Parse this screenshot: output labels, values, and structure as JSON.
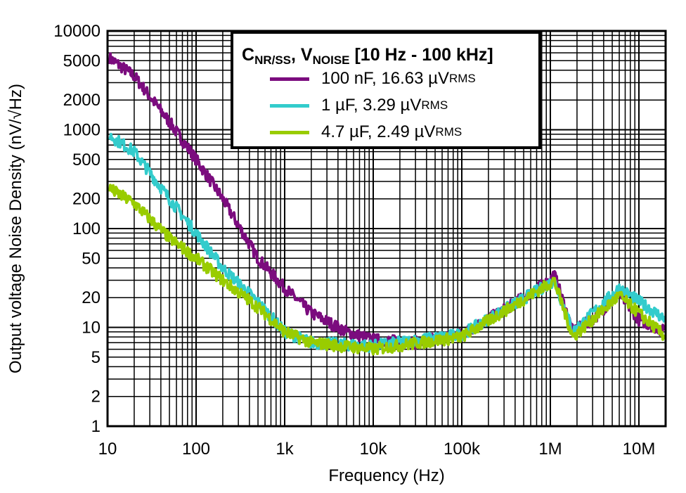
{
  "chart_data": {
    "type": "line",
    "xlabel": "Frequency (Hz)",
    "ylabel": "Output voltage Noise Density (nV/√Hz)",
    "xscale": "log",
    "yscale": "log",
    "xlim": [
      10,
      20000000
    ],
    "ylim": [
      1,
      10000
    ],
    "grid": true,
    "x_ticks": [
      10,
      100,
      1000,
      10000,
      100000,
      1000000,
      10000000
    ],
    "x_tick_labels": [
      "10",
      "100",
      "1k",
      "10k",
      "100k",
      "1M",
      "10M"
    ],
    "y_ticks": [
      1,
      2,
      5,
      10,
      20,
      50,
      100,
      200,
      500,
      1000,
      2000,
      5000,
      10000
    ],
    "y_tick_labels": [
      "1",
      "2",
      "5",
      "10",
      "20",
      "50",
      "100",
      "200",
      "500",
      "1000",
      "2000",
      "5000",
      "10000"
    ],
    "legend": {
      "placement": "top-right",
      "title_main1": "C",
      "title_sub1": "NR/SS",
      "title_main2": ", V",
      "title_sub2": "NOISE",
      "title_rest": " [10 Hz - 100 kHz]"
    },
    "series": [
      {
        "name": "100 nF, 16.63 µV",
        "name_sub": "RMS",
        "color": "#7B0C7E",
        "x": [
          10,
          20,
          50,
          100,
          200,
          500,
          1000,
          2000,
          5000,
          10000,
          30000,
          100000,
          300000,
          1000000,
          1100000,
          1800000,
          3000000,
          6000000,
          10000000,
          20000000
        ],
        "y": [
          5500,
          3500,
          1200,
          500,
          200,
          50,
          25,
          14,
          9,
          7.5,
          7,
          8.5,
          15,
          30,
          35,
          9,
          12,
          22,
          12,
          9
        ]
      },
      {
        "name": "1 µF, 3.29 µV",
        "name_sub": "RMS",
        "color": "#33CCCC",
        "x": [
          10,
          20,
          50,
          100,
          200,
          500,
          1000,
          2000,
          10000,
          100000,
          1000000,
          1100000,
          1800000,
          6000000,
          20000000
        ],
        "y": [
          900,
          600,
          200,
          90,
          40,
          18,
          9,
          7,
          6.5,
          8.5,
          28,
          30,
          9,
          25,
          12
        ]
      },
      {
        "name": "4.7 µF, 2.49 µV",
        "name_sub": "RMS",
        "color": "#99CC00",
        "x": [
          10,
          20,
          50,
          100,
          200,
          500,
          1000,
          2000,
          10000,
          100000,
          1000000,
          1100000,
          1800000,
          6000000,
          20000000
        ],
        "y": [
          260,
          180,
          80,
          50,
          30,
          16,
          9,
          7,
          6,
          8,
          28,
          30,
          8,
          21,
          8
        ]
      }
    ]
  }
}
